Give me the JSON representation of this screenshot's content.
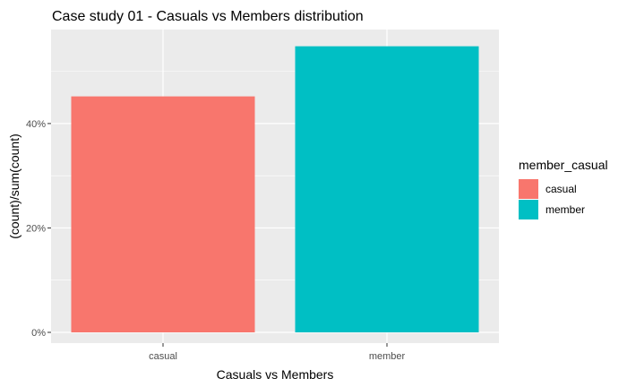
{
  "chart_data": {
    "type": "bar",
    "title": "Case study 01 - Casuals vs Members distribution",
    "xlabel": "Casuals vs Members",
    "ylabel": "(count)/sum(count)",
    "categories": [
      "casual",
      "member"
    ],
    "values": [
      0.452,
      0.548
    ],
    "ylim": [
      0,
      0.58
    ],
    "y_ticks": [
      0,
      0.2,
      0.4
    ],
    "y_tick_labels": [
      "0%",
      "20%",
      "40%"
    ],
    "colors": [
      "#F8766D",
      "#00BFC4"
    ],
    "panel_background": "#EBEBEB",
    "grid": true,
    "legend": {
      "title": "member_casual",
      "position": "right",
      "entries": [
        "casual",
        "member"
      ]
    }
  }
}
